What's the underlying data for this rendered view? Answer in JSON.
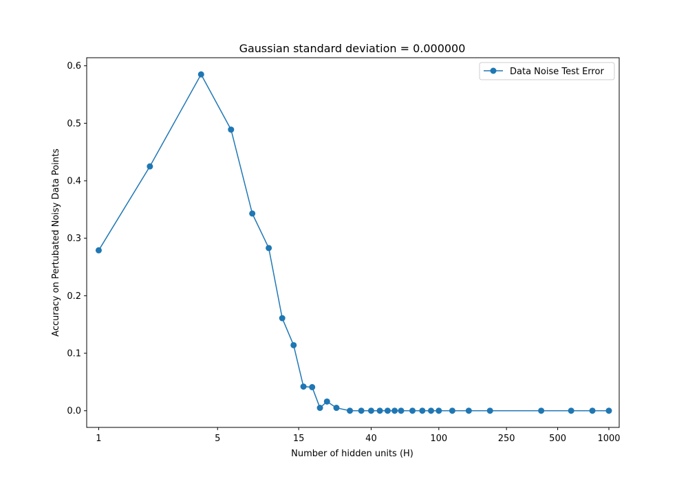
{
  "chart_data": {
    "type": "line",
    "title": "Gaussian standard deviation = 0.000000",
    "xlabel": "Number of hidden units (H)",
    "ylabel": "Accuracy on Pertubated Noisy Data Points",
    "xscale": "log",
    "xlim": [
      0.85,
      1150
    ],
    "ylim": [
      -0.029,
      0.614
    ],
    "xticks": [
      1,
      5,
      15,
      40,
      100,
      250,
      500,
      1000
    ],
    "xtick_labels": [
      "1",
      "5",
      "15",
      "40",
      "100",
      "250",
      "500",
      "1000"
    ],
    "yticks": [
      0.0,
      0.1,
      0.2,
      0.3,
      0.4,
      0.5,
      0.6
    ],
    "ytick_labels": [
      "0.0",
      "0.1",
      "0.2",
      "0.3",
      "0.4",
      "0.5",
      "0.6"
    ],
    "grid": false,
    "legend_position": "upper right",
    "series": [
      {
        "name": "Data Noise Test Error",
        "color": "#1f77b4",
        "marker": "circle",
        "x": [
          1,
          2,
          4,
          6,
          8,
          10,
          12,
          14,
          16,
          18,
          20,
          22,
          25,
          30,
          35,
          40,
          45,
          50,
          55,
          60,
          70,
          80,
          90,
          100,
          120,
          150,
          200,
          400,
          600,
          800,
          1000
        ],
        "y": [
          0.279,
          0.425,
          0.585,
          0.489,
          0.343,
          0.283,
          0.161,
          0.114,
          0.042,
          0.041,
          0.005,
          0.016,
          0.005,
          0.0,
          0.0,
          0.0,
          0.0,
          0.0,
          0.0,
          0.0,
          0.0,
          0.0,
          0.0,
          0.0,
          0.0,
          0.0,
          0.0,
          0.0,
          0.0,
          0.0,
          0.0
        ]
      }
    ]
  }
}
